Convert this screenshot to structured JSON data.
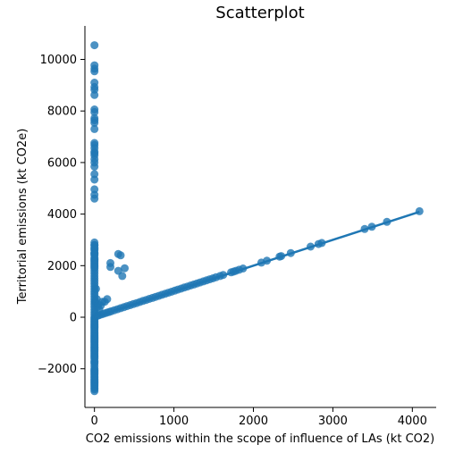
{
  "chart_data": {
    "type": "scatter",
    "title": "Scatterplot",
    "xlabel": "CO2 emissions within the scope of influence of LAs (kt CO2)",
    "ylabel": "Territorial emissions (kt CO2e)",
    "xlim": [
      -120,
      4300
    ],
    "ylim": [
      -3500,
      11300
    ],
    "xticks": [
      0,
      1000,
      2000,
      3000,
      4000
    ],
    "xtick_labels": [
      "0",
      "1000",
      "2000",
      "3000",
      "4000"
    ],
    "yticks": [
      -2000,
      0,
      2000,
      4000,
      6000,
      8000,
      10000
    ],
    "ytick_labels": [
      "−2000",
      "0",
      "2000",
      "4000",
      "6000",
      "8000",
      "10000"
    ],
    "grid": false,
    "point_color": "#1f77b4",
    "line_color": "#1f77b4",
    "regression_line": {
      "x": [
        0,
        4090
      ],
      "y": [
        0,
        4090
      ]
    },
    "series": [
      {
        "x": [
          0,
          0,
          0,
          0,
          0,
          0,
          0,
          0,
          0,
          0,
          0,
          0,
          0,
          0,
          0,
          0,
          0,
          0,
          0,
          0,
          0,
          0,
          0,
          0,
          0,
          0,
          0,
          0,
          0,
          0,
          0,
          0,
          0,
          0,
          0,
          0,
          0,
          0,
          0,
          0,
          0,
          0,
          0,
          0,
          0,
          0,
          0,
          0,
          0,
          0,
          0,
          0,
          0,
          0,
          0,
          0,
          0,
          0,
          0,
          0,
          0,
          0,
          0,
          0,
          0,
          0,
          0,
          0,
          0,
          0,
          0,
          0,
          0,
          0,
          0,
          0,
          0,
          0,
          0,
          0,
          0,
          0,
          0,
          0,
          0,
          0,
          0,
          0,
          0,
          0,
          0,
          0,
          0,
          0,
          0,
          0,
          0,
          0,
          0,
          0,
          0,
          0,
          0,
          0,
          0,
          0,
          0,
          0,
          0,
          0,
          0,
          0,
          0,
          0,
          0,
          0,
          0,
          0,
          0,
          0,
          20,
          30,
          10,
          40,
          50,
          60,
          80,
          100,
          130,
          160,
          200,
          200,
          300,
          330,
          380,
          300,
          350,
          40,
          60,
          90,
          120,
          150,
          180,
          210,
          250,
          290,
          330,
          370,
          410,
          450,
          490,
          530,
          570,
          610,
          650,
          690,
          730,
          770,
          810,
          850,
          890,
          930,
          970,
          1010,
          1050,
          1090,
          1130,
          1170,
          1210,
          1250,
          1290,
          1330,
          1370,
          1410,
          1450,
          1490,
          1530,
          1580,
          1620,
          1720,
          1750,
          1780,
          1820,
          1870,
          2100,
          2170,
          2330,
          2350,
          2470,
          2720,
          2820,
          2860,
          3400,
          3490,
          3680,
          4090
        ],
        "y": [
          10550,
          9770,
          9640,
          9540,
          9100,
          8930,
          8830,
          8620,
          8060,
          7960,
          7720,
          7640,
          7540,
          7300,
          6760,
          6680,
          6560,
          6420,
          6360,
          6280,
          6130,
          6000,
          5840,
          5550,
          5340,
          4960,
          4750,
          4600,
          2900,
          2800,
          2700,
          2600,
          2480,
          2400,
          2300,
          2200,
          2100,
          2000,
          1900,
          1800,
          1700,
          1600,
          1500,
          1400,
          1300,
          1200,
          1100,
          1000,
          900,
          800,
          700,
          600,
          500,
          400,
          300,
          200,
          100,
          0,
          -50,
          -100,
          -150,
          -200,
          -250,
          -300,
          -350,
          -400,
          -450,
          -500,
          -550,
          -600,
          -650,
          -700,
          -750,
          -800,
          -850,
          -900,
          -950,
          -1000,
          -1050,
          -1100,
          -1150,
          -1200,
          -1250,
          -1300,
          -1350,
          -1400,
          -1450,
          -1500,
          -1550,
          -1600,
          -1700,
          -1750,
          -1800,
          -1900,
          -2000,
          -2050,
          -2100,
          -2150,
          -2200,
          -2250,
          -2300,
          -2350,
          -2400,
          -2450,
          -2500,
          -2550,
          -2600,
          -2650,
          -2700,
          -2750,
          -2800,
          -2870,
          2800,
          2650,
          2500,
          2450,
          2250,
          2150,
          2050,
          1950,
          1100,
          700,
          600,
          400,
          500,
          300,
          450,
          600,
          600,
          700,
          2100,
          1950,
          2450,
          2400,
          1900,
          1800,
          1600,
          60,
          80,
          110,
          140,
          170,
          200,
          230,
          270,
          310,
          350,
          390,
          430,
          470,
          510,
          550,
          590,
          630,
          670,
          710,
          750,
          790,
          830,
          870,
          910,
          950,
          990,
          1030,
          1070,
          1110,
          1150,
          1190,
          1230,
          1270,
          1310,
          1350,
          1390,
          1430,
          1470,
          1510,
          1550,
          1600,
          1640,
          1740,
          1770,
          1800,
          1840,
          1890,
          2120,
          2190,
          2350,
          2370,
          2490,
          2740,
          2840,
          2880,
          3420,
          3510,
          3700,
          4110
        ]
      }
    ]
  }
}
